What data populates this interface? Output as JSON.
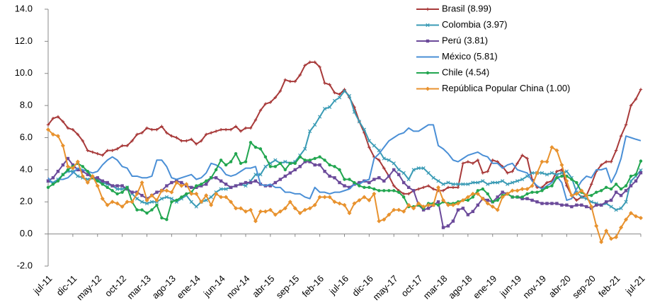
{
  "chart_data": {
    "type": "line",
    "categories": [
      "jul-11",
      null,
      null,
      null,
      null,
      "dic-11",
      null,
      null,
      null,
      null,
      "may-12",
      null,
      null,
      null,
      null,
      "oct-12",
      null,
      null,
      null,
      null,
      "mar-13",
      null,
      null,
      null,
      null,
      "ago-13",
      null,
      null,
      null,
      null,
      "ene-14",
      null,
      null,
      null,
      null,
      "jun-14",
      null,
      null,
      null,
      null,
      "nov-14",
      null,
      null,
      null,
      null,
      "abr-15",
      null,
      null,
      null,
      null,
      "sep-15",
      null,
      null,
      null,
      null,
      "feb-16",
      null,
      null,
      null,
      null,
      "jul-16",
      null,
      null,
      null,
      null,
      "dic-16",
      null,
      null,
      null,
      null,
      "may-17",
      null,
      null,
      null,
      null,
      "oct-17",
      null,
      null,
      null,
      null,
      "mar-18",
      null,
      null,
      null,
      null,
      "ago-18",
      null,
      null,
      null,
      null,
      "ene-19",
      null,
      null,
      null,
      null,
      "jun-19",
      null,
      null,
      null,
      null,
      "nov-19",
      null,
      null,
      null,
      null,
      "abr-20",
      null,
      null,
      null,
      null,
      "sep-20",
      null,
      null,
      null,
      null,
      "feb-21",
      null,
      null,
      null,
      null,
      "jul-21"
    ],
    "series": [
      {
        "name": "Brasil (8.99)",
        "color": "#a83a3a",
        "marker": "plus",
        "values": [
          6.8,
          7.2,
          7.3,
          7.0,
          6.6,
          6.5,
          6.2,
          5.8,
          5.2,
          5.1,
          5.0,
          4.9,
          5.2,
          5.2,
          5.3,
          5.5,
          5.5,
          5.8,
          6.2,
          6.3,
          6.6,
          6.5,
          6.5,
          6.7,
          6.3,
          6.1,
          6.0,
          5.8,
          5.8,
          5.9,
          5.6,
          5.8,
          6.2,
          6.3,
          6.4,
          6.5,
          6.5,
          6.5,
          6.7,
          6.4,
          6.6,
          6.6,
          7.1,
          7.7,
          8.1,
          8.2,
          8.5,
          8.9,
          9.6,
          9.5,
          9.5,
          9.9,
          10.5,
          10.7,
          10.7,
          10.4,
          9.4,
          9.3,
          8.8,
          8.7,
          9.0,
          8.5,
          7.9,
          7.0,
          6.3,
          5.4,
          4.8,
          4.6,
          4.1,
          3.6,
          3.0,
          2.7,
          2.5,
          2.5,
          2.7,
          2.8,
          2.9,
          3.0,
          2.8,
          2.7,
          2.7,
          2.9,
          2.9,
          2.9,
          4.4,
          4.5,
          4.4,
          4.6,
          3.8,
          3.9,
          4.6,
          4.5,
          4.2,
          3.8,
          3.9,
          4.4,
          4.9,
          4.7,
          3.4,
          2.9,
          2.9,
          3.2,
          3.3,
          3.9,
          4.0,
          3.0,
          2.4,
          2.1,
          2.3,
          2.4,
          3.1,
          3.9,
          4.3,
          4.5,
          4.5,
          5.2,
          6.1,
          6.8,
          8.0,
          8.4,
          9.0
        ]
      },
      {
        "name": "Colombia (3.97)",
        "color": "#3a9bb5",
        "marker": "x",
        "values": [
          3.3,
          3.2,
          3.4,
          3.7,
          3.9,
          3.9,
          3.6,
          3.5,
          3.4,
          3.5,
          3.4,
          3.2,
          3.1,
          3.0,
          2.8,
          2.8,
          2.9,
          2.5,
          2.2,
          2.0,
          1.9,
          2.0,
          2.0,
          2.2,
          2.3,
          2.2,
          2.0,
          2.2,
          2.4,
          2.0,
          1.7,
          2.0,
          2.1,
          2.3,
          2.6,
          2.8,
          2.8,
          2.9,
          3.0,
          3.1,
          3.0,
          3.3,
          3.7,
          3.7,
          4.2,
          4.4,
          4.6,
          4.4,
          4.5,
          4.4,
          4.5,
          4.9,
          5.3,
          6.4,
          6.8,
          7.3,
          7.8,
          7.9,
          8.3,
          8.5,
          8.9,
          8.6,
          7.6,
          7.0,
          6.5,
          5.8,
          5.5,
          5.2,
          4.7,
          4.6,
          4.4,
          4.0,
          3.8,
          3.4,
          4.0,
          4.1,
          4.1,
          3.8,
          3.5,
          3.3,
          3.1,
          3.2,
          3.1,
          3.1,
          3.1,
          3.1,
          3.2,
          3.2,
          3.3,
          3.1,
          3.2,
          3.2,
          3.3,
          3.1,
          3.2,
          3.3,
          3.4,
          3.6,
          3.8,
          3.8,
          3.8,
          3.7,
          3.8,
          3.7,
          3.8,
          3.9,
          3.5,
          2.6,
          2.3,
          2.2,
          2.0,
          1.9,
          1.8,
          1.9,
          1.7,
          1.5,
          1.6,
          2.0,
          3.3,
          3.6,
          3.97
        ]
      },
      {
        "name": "Perú (3.81)",
        "color": "#6b4a9a",
        "marker": "square",
        "values": [
          3.3,
          3.5,
          3.9,
          4.3,
          4.7,
          4.3,
          4.0,
          3.9,
          3.7,
          3.5,
          3.5,
          3.3,
          3.2,
          3.0,
          3.0,
          3.0,
          2.8,
          2.6,
          2.6,
          2.4,
          2.2,
          2.4,
          2.6,
          2.7,
          3.0,
          3.2,
          3.3,
          3.2,
          3.0,
          2.9,
          2.9,
          3.0,
          3.1,
          3.5,
          3.5,
          3.3,
          3.1,
          2.9,
          3.0,
          3.1,
          3.2,
          3.2,
          3.3,
          3.1,
          3.0,
          3.0,
          3.2,
          3.4,
          3.6,
          3.8,
          4.0,
          4.2,
          4.5,
          4.5,
          4.3,
          4.3,
          3.9,
          3.6,
          3.5,
          3.2,
          3.0,
          2.9,
          3.1,
          3.2,
          3.3,
          3.2,
          3.4,
          3.5,
          3.3,
          3.6,
          4.0,
          3.7,
          3.2,
          2.9,
          2.7,
          1.8,
          1.5,
          1.6,
          1.8,
          2.0,
          0.4,
          0.5,
          0.8,
          1.5,
          1.6,
          1.2,
          1.4,
          1.8,
          2.2,
          2.1,
          2.0,
          2.3,
          2.6,
          2.5,
          2.3,
          2.3,
          2.2,
          2.2,
          2.1,
          2.0,
          1.9,
          1.9,
          1.9,
          1.9,
          1.8,
          1.8,
          1.7,
          1.8,
          1.8,
          1.7,
          1.6,
          1.8,
          1.8,
          2.0,
          2.1,
          2.6,
          2.4,
          2.7,
          3.0,
          3.3,
          3.81
        ]
      },
      {
        "name": "México (5.81)",
        "color": "#4a8fd6",
        "marker": "none",
        "values": [
          3.5,
          3.1,
          3.4,
          3.4,
          3.5,
          3.8,
          4.1,
          4.0,
          3.9,
          3.8,
          3.9,
          4.3,
          4.6,
          4.8,
          4.6,
          4.2,
          4.1,
          3.6,
          3.6,
          3.5,
          3.5,
          3.6,
          4.6,
          4.6,
          4.2,
          3.5,
          3.4,
          3.5,
          3.6,
          3.7,
          3.4,
          3.5,
          3.8,
          4.4,
          4.3,
          4.1,
          3.7,
          3.6,
          3.7,
          3.9,
          4.1,
          4.1,
          4.2,
          3.1,
          3.0,
          3.1,
          2.9,
          2.9,
          2.6,
          2.6,
          2.5,
          2.5,
          2.3,
          2.2,
          2.9,
          2.6,
          2.6,
          2.5,
          2.6,
          2.6,
          2.7,
          2.8,
          3.1,
          3.1,
          3.3,
          3.4,
          4.7,
          5.0,
          5.4,
          5.8,
          6.0,
          6.2,
          6.3,
          6.6,
          6.4,
          6.4,
          6.6,
          6.8,
          6.8,
          5.5,
          5.3,
          5.0,
          4.6,
          4.5,
          4.7,
          4.9,
          5.0,
          5.1,
          4.9,
          4.8,
          4.4,
          4.4,
          4.1,
          4.3,
          4.4,
          4.0,
          3.9,
          3.8,
          3.3,
          3.0,
          2.8,
          3.0,
          3.2,
          3.6,
          3.2,
          2.1,
          2.2,
          2.8,
          3.3,
          3.6,
          3.5,
          4.0,
          4.0,
          4.1,
          3.2,
          3.8,
          4.7,
          6.1,
          6.0,
          5.9,
          5.81
        ]
      },
      {
        "name": "Chile (4.54)",
        "color": "#22a650",
        "marker": "circle",
        "values": [
          2.9,
          3.1,
          3.3,
          3.7,
          4.0,
          4.2,
          4.4,
          4.2,
          3.9,
          3.5,
          3.3,
          3.1,
          2.9,
          2.7,
          2.5,
          2.6,
          2.9,
          2.0,
          1.5,
          1.5,
          1.3,
          1.5,
          1.8,
          1.0,
          0.9,
          2.0,
          2.1,
          2.3,
          2.5,
          2.6,
          3.0,
          3.1,
          3.3,
          3.5,
          4.0,
          4.6,
          4.3,
          4.5,
          5.0,
          4.4,
          4.5,
          5.7,
          5.4,
          5.3,
          4.8,
          4.2,
          4.2,
          4.4,
          4.0,
          4.4,
          4.4,
          4.8,
          4.6,
          4.6,
          4.7,
          4.8,
          4.6,
          4.3,
          4.2,
          4.0,
          3.4,
          3.4,
          3.2,
          3.0,
          2.9,
          2.9,
          2.8,
          2.7,
          2.7,
          2.7,
          2.7,
          2.6,
          2.3,
          1.7,
          1.7,
          1.8,
          1.6,
          1.9,
          1.9,
          1.8,
          2.0,
          1.9,
          1.9,
          2.0,
          2.1,
          2.1,
          2.3,
          2.7,
          2.8,
          2.5,
          2.0,
          2.1,
          2.4,
          2.5,
          2.3,
          2.3,
          2.3,
          2.5,
          2.6,
          2.6,
          2.7,
          2.9,
          3.0,
          3.5,
          3.6,
          3.6,
          3.4,
          3.2,
          2.6,
          2.4,
          2.4,
          2.6,
          2.7,
          2.9,
          2.8,
          3.1,
          2.8,
          3.0,
          3.6,
          3.7,
          4.54
        ]
      },
      {
        "name": "República Popular China (1.00)",
        "color": "#e8922e",
        "marker": "diamond",
        "values": [
          6.5,
          6.2,
          6.1,
          5.5,
          4.2,
          4.1,
          4.5,
          3.6,
          3.2,
          3.6,
          3.0,
          2.2,
          1.8,
          2.0,
          1.9,
          1.7,
          2.0,
          2.0,
          2.5,
          3.2,
          2.1,
          2.4,
          2.1,
          2.7,
          2.7,
          2.6,
          3.2,
          3.0,
          3.1,
          2.5,
          2.5,
          2.0,
          2.4,
          1.8,
          2.5,
          2.3,
          2.3,
          2.0,
          1.6,
          1.6,
          1.4,
          1.5,
          0.8,
          1.4,
          1.4,
          1.5,
          1.2,
          1.4,
          1.6,
          2.0,
          1.6,
          1.3,
          1.5,
          1.6,
          1.8,
          2.3,
          2.3,
          2.3,
          2.0,
          1.9,
          1.8,
          1.3,
          1.9,
          2.1,
          2.3,
          2.1,
          2.5,
          0.8,
          0.9,
          1.2,
          1.5,
          1.5,
          1.4,
          1.8,
          1.6,
          1.9,
          1.7,
          1.8,
          1.8,
          2.9,
          2.1,
          1.8,
          1.8,
          1.9,
          2.1,
          2.3,
          2.5,
          2.5,
          2.2,
          1.9,
          1.7,
          1.5,
          2.3,
          2.5,
          2.7,
          2.7,
          2.8,
          2.8,
          3.0,
          3.8,
          4.5,
          4.5,
          5.4,
          5.2,
          4.3,
          3.3,
          2.4,
          2.5,
          2.7,
          2.4,
          1.7,
          0.5,
          -0.5,
          0.2,
          -0.3,
          -0.2,
          0.4,
          0.9,
          1.3,
          1.1,
          1.0
        ]
      }
    ],
    "ylim": [
      -2,
      14
    ],
    "yticks": [
      {
        "value": -2,
        "label": "-2.0"
      },
      {
        "value": 0,
        "label": "0.0"
      },
      {
        "value": 2,
        "label": "2.0"
      },
      {
        "value": 4,
        "label": "4.0"
      },
      {
        "value": 6,
        "label": "6.0"
      },
      {
        "value": 8,
        "label": "8.0"
      },
      {
        "value": 10,
        "label": "10.0"
      },
      {
        "value": 12,
        "label": "12.0"
      },
      {
        "value": 14,
        "label": "14.0"
      }
    ],
    "grid": false,
    "legend": "upper-right"
  }
}
